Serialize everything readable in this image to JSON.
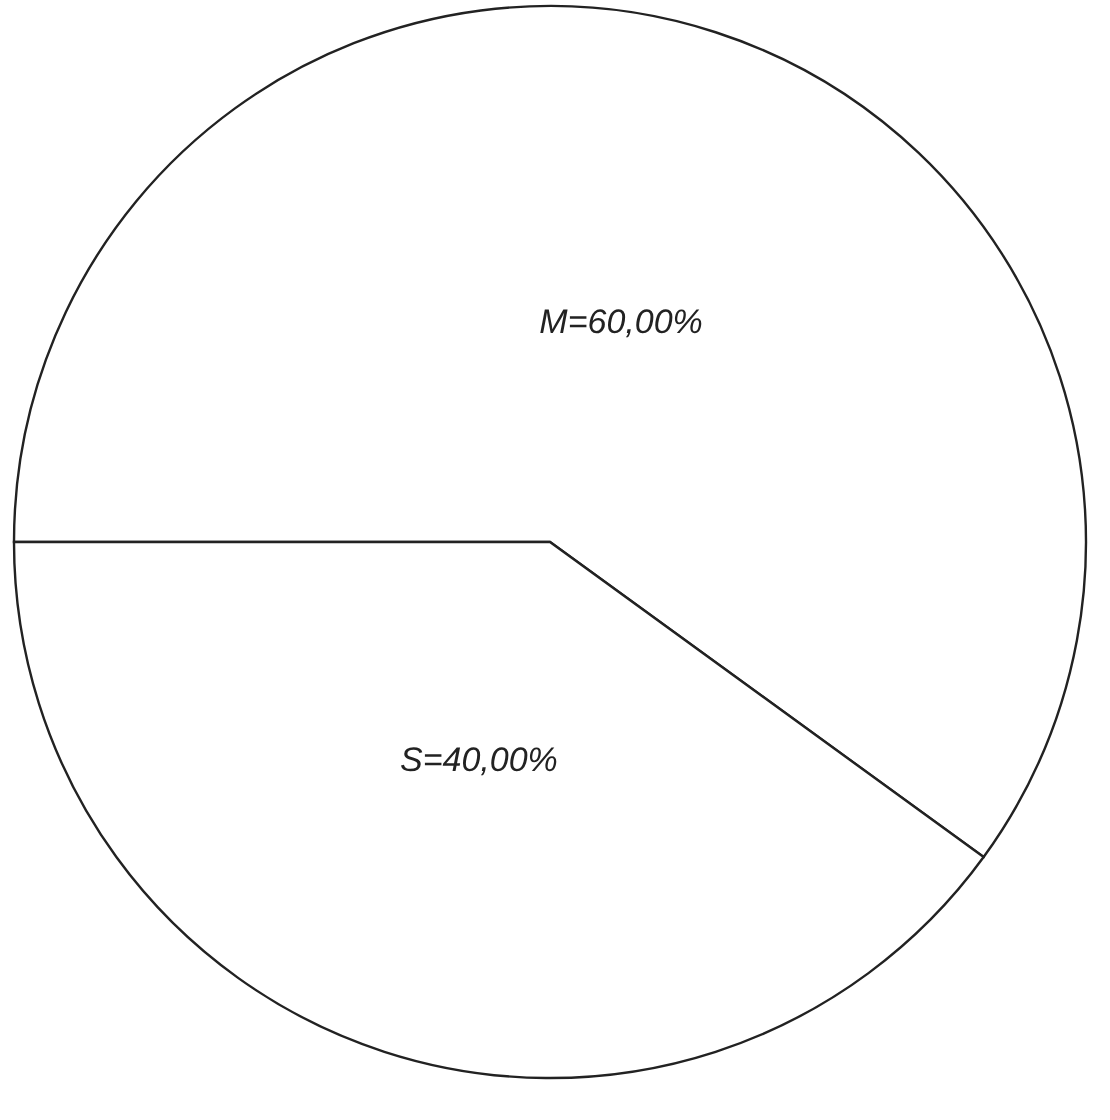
{
  "chart_data": {
    "type": "pie",
    "categories": [
      "M=60,00%",
      "S=40,00%"
    ],
    "values": [
      60,
      40
    ],
    "colors": [
      "#ffffff",
      "#ffffff"
    ],
    "legend": false
  }
}
